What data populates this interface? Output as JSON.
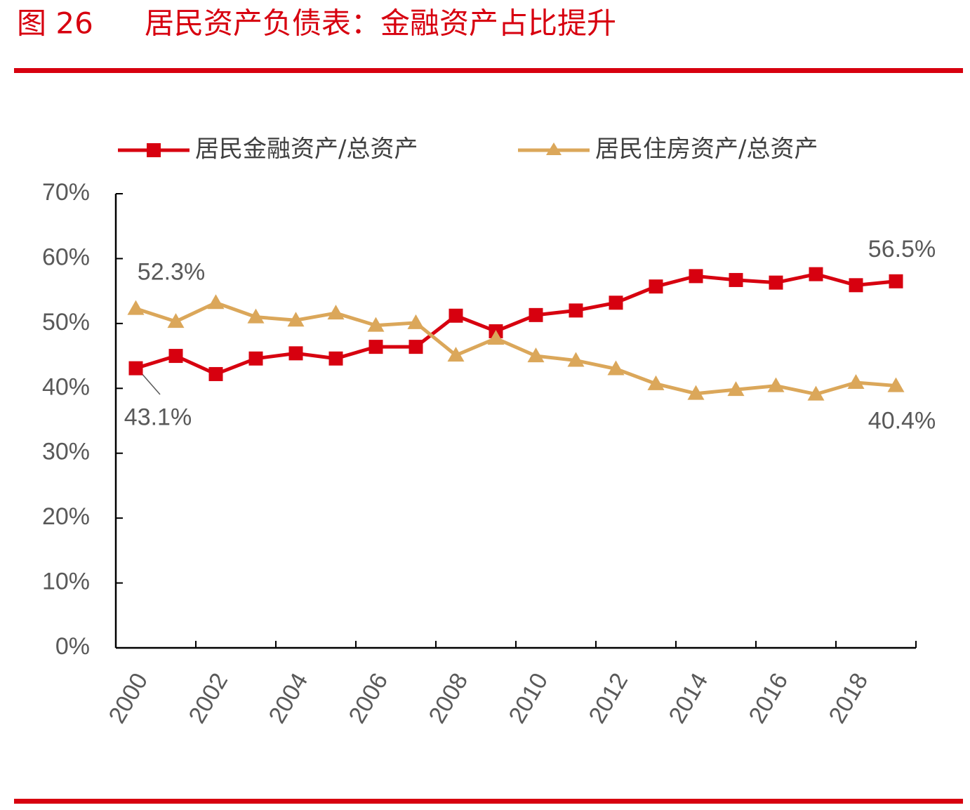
{
  "chart_data": {
    "type": "line",
    "figure_label": "图 26",
    "title": "居民资产负债表：金融资产占比提升",
    "categories": [
      "2000",
      null,
      "2002",
      null,
      "2004",
      null,
      "2006",
      null,
      "2008",
      null,
      "2010",
      null,
      "2012",
      null,
      "2014",
      null,
      "2016",
      null,
      "2018",
      null
    ],
    "series": [
      {
        "name": "居民金融资产/总资产",
        "color": "#d7000f",
        "marker": "square",
        "values": [
          43.1,
          45.0,
          42.2,
          44.6,
          45.4,
          44.6,
          46.4,
          46.4,
          51.2,
          48.8,
          51.3,
          52.0,
          53.2,
          55.7,
          57.3,
          56.7,
          56.3,
          57.6,
          55.9,
          56.5
        ],
        "value_labels": [
          "43.1%",
          null,
          null,
          null,
          null,
          null,
          null,
          null,
          null,
          null,
          null,
          null,
          null,
          null,
          null,
          null,
          null,
          null,
          null,
          "56.5%"
        ]
      },
      {
        "name": "居民住房资产/总资产",
        "color": "#dba75a",
        "marker": "triangle",
        "values": [
          52.3,
          50.3,
          53.2,
          51.0,
          50.5,
          51.6,
          49.7,
          50.1,
          45.1,
          47.7,
          45.0,
          44.3,
          43.0,
          40.7,
          39.2,
          39.8,
          40.4,
          39.1,
          40.9,
          40.4
        ],
        "value_labels": [
          "52.3%",
          null,
          null,
          null,
          null,
          null,
          null,
          null,
          null,
          null,
          null,
          null,
          null,
          null,
          null,
          null,
          null,
          null,
          null,
          "40.4%"
        ]
      }
    ],
    "ylim": [
      0,
      70
    ],
    "yticks": [
      {
        "value": 0,
        "label": "0%"
      },
      {
        "value": 10,
        "label": "10%"
      },
      {
        "value": 20,
        "label": "20%"
      },
      {
        "value": 30,
        "label": "30%"
      },
      {
        "value": 40,
        "label": "40%"
      },
      {
        "value": 50,
        "label": "50%"
      },
      {
        "value": 60,
        "label": "60%"
      },
      {
        "value": 70,
        "label": "70%"
      }
    ],
    "grid": false,
    "legend": "top"
  }
}
